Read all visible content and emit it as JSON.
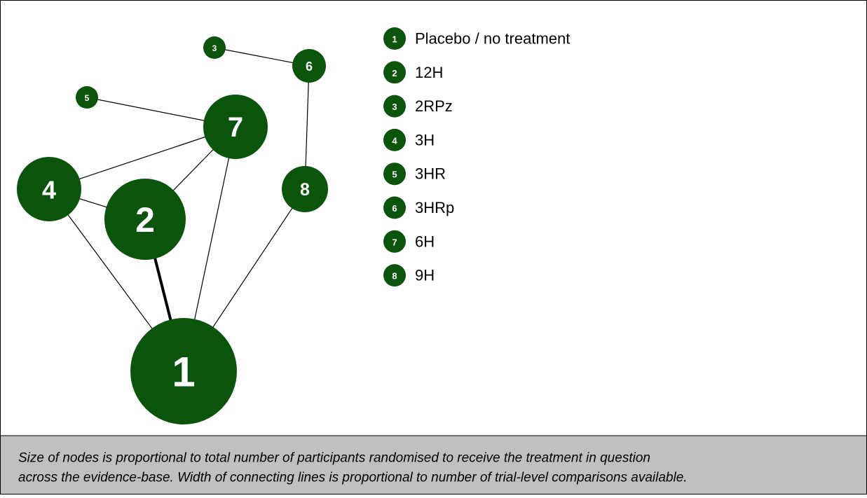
{
  "nodes": [
    {
      "id": "1",
      "label": "Placebo / no treatment"
    },
    {
      "id": "2",
      "label": "12H"
    },
    {
      "id": "3",
      "label": "2RPz"
    },
    {
      "id": "4",
      "label": "3H"
    },
    {
      "id": "5",
      "label": "3HR"
    },
    {
      "id": "6",
      "label": "3HRp"
    },
    {
      "id": "7",
      "label": "6H"
    },
    {
      "id": "8",
      "label": "9H"
    }
  ],
  "caption": [
    "Size of nodes is proportional to total number of participants randomised to receive the treatment in question",
    "across the evidence-base. Width of connecting lines is proportional to number of trial-level comparisons available."
  ]
}
